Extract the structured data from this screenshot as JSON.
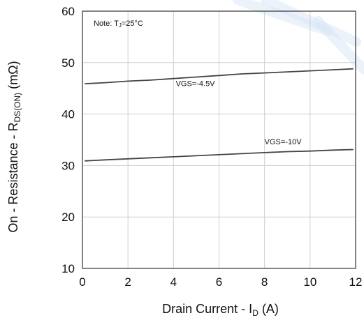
{
  "colors": {
    "background": "#ffffff",
    "grid": "#cfcfcf",
    "frame": "#333333",
    "series": "#444444",
    "watermark": "#dbe8f7"
  },
  "chart_data": {
    "type": "line",
    "xlabel": {
      "text": "Drain Current - I",
      "sub": "D",
      "tail": " (A)"
    },
    "ylabel": {
      "text": "On - Resistance - R",
      "sub": "DS(ON)",
      "tail": " (mΩ)"
    },
    "note": {
      "text": "Note: T",
      "sub": "J",
      "tail": "=25°C"
    },
    "xlim": [
      0,
      12
    ],
    "ylim": [
      10,
      60
    ],
    "xticks": [
      0,
      2,
      4,
      6,
      8,
      10,
      12
    ],
    "yticks": [
      10,
      20,
      30,
      40,
      50,
      60
    ],
    "xticklabels": [
      "0",
      "2",
      "4",
      "6",
      "8",
      "10",
      "12"
    ],
    "yticklabels": [
      "10",
      "20",
      "30",
      "40",
      "50",
      "60"
    ],
    "grid": true,
    "series": [
      {
        "name": "VGS=-4.5V",
        "x": [
          0.1,
          1,
          2,
          3,
          4,
          5,
          6,
          7,
          8,
          9,
          10,
          11,
          11.9
        ],
        "y": [
          45.9,
          46.1,
          46.4,
          46.6,
          46.9,
          47.2,
          47.5,
          47.8,
          48.0,
          48.2,
          48.4,
          48.6,
          48.8
        ]
      },
      {
        "name": "VGS=-10V",
        "x": [
          0.1,
          1,
          2,
          3,
          4,
          5,
          6,
          7,
          8,
          9,
          10,
          11,
          11.9
        ],
        "y": [
          30.9,
          31.1,
          31.3,
          31.5,
          31.7,
          31.9,
          32.1,
          32.3,
          32.5,
          32.7,
          32.8,
          33.0,
          33.1
        ]
      }
    ]
  }
}
